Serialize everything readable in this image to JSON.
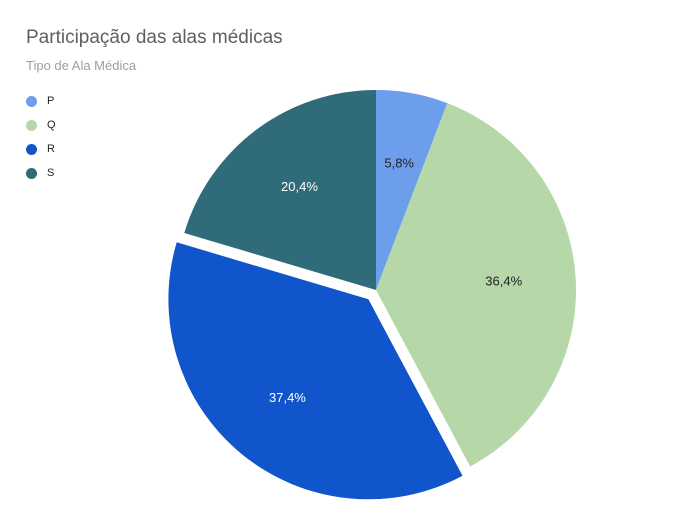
{
  "chart_data": {
    "type": "pie",
    "title": "Participação das alas médicas",
    "subtitle": "Tipo de Ala Médica",
    "legend_position": "top-left",
    "slices": [
      {
        "name": "P",
        "value": 5.8,
        "label": "5,8%",
        "color": "#6d9eeb",
        "label_color": "#222222"
      },
      {
        "name": "Q",
        "value": 36.4,
        "label": "36,4%",
        "color": "#b6d7a8",
        "label_color": "#222222"
      },
      {
        "name": "R",
        "value": 37.4,
        "label": "37,4%",
        "color": "#1155cc",
        "label_color": "#ffffff",
        "exploded": true
      },
      {
        "name": "S",
        "value": 20.4,
        "label": "20,4%",
        "color": "#2f6b78",
        "label_color": "#ffffff"
      }
    ]
  }
}
